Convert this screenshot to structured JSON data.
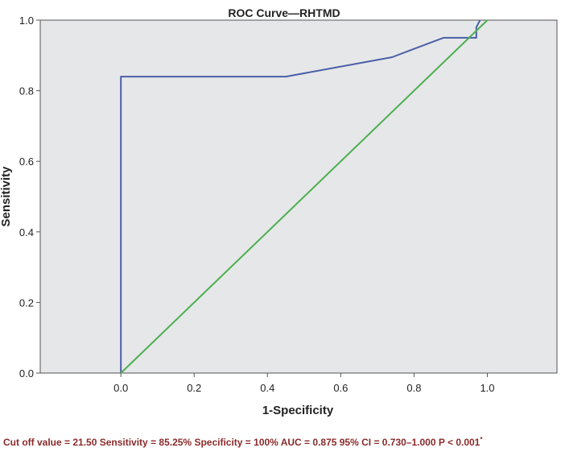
{
  "chart_data": {
    "type": "line",
    "title": "ROC Curve—RHTMD",
    "xlabel": "1-Specificity",
    "ylabel": "Sensitivity",
    "xlim": [
      -0.22,
      1.19
    ],
    "ylim": [
      0.0,
      1.0
    ],
    "xticks": [
      "0.0",
      "0.2",
      "0.4",
      "0.6",
      "0.8",
      "1.0"
    ],
    "yticks": [
      "0.0",
      "0.2",
      "0.4",
      "0.6",
      "0.8",
      "1.0"
    ],
    "grid": false,
    "background": "#e6e7e9",
    "series": [
      {
        "color": "#4a5fa8",
        "x": [
          0.0,
          0.0,
          0.45,
          0.74,
          0.88,
          0.97,
          0.97,
          0.98
        ],
        "y": [
          0.0,
          0.84,
          0.84,
          0.895,
          0.95,
          0.95,
          0.98,
          1.0
        ]
      },
      {
        "color": "#4caf50",
        "x": [
          0.0,
          1.0
        ],
        "y": [
          0.0,
          1.0
        ]
      }
    ]
  },
  "footnote": {
    "text": "Cut off value = 21.50  Sensitivity = 85.25%  Specificity = 100%  AUC = 0.875  95% CI = 0.730–1.000  P < 0.001",
    "marker": "*"
  }
}
